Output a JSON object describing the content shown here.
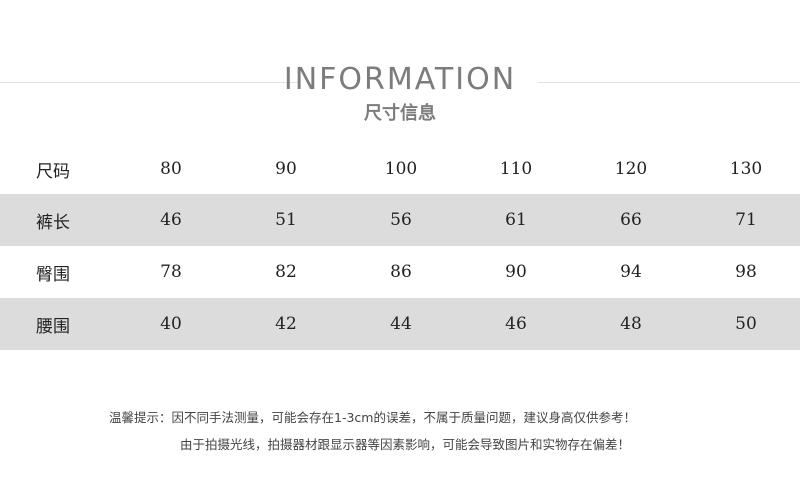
{
  "header": {
    "title": "INFORMATION",
    "subtitle": "尺寸信息"
  },
  "table": {
    "rows": [
      {
        "label": "尺码",
        "values": [
          "80",
          "90",
          "100",
          "110",
          "120",
          "130"
        ]
      },
      {
        "label": "裤长",
        "values": [
          "46",
          "51",
          "56",
          "61",
          "66",
          "71"
        ]
      },
      {
        "label": "臀围",
        "values": [
          "78",
          "82",
          "86",
          "90",
          "94",
          "98"
        ]
      },
      {
        "label": "腰围",
        "values": [
          "40",
          "42",
          "44",
          "46",
          "48",
          "50"
        ]
      }
    ]
  },
  "notes": [
    "温馨提示：因不同手法测量，可能会存在1-3cm的误差，不属于质量问题，建议身高仅供参考！",
    "由于拍摄光线，拍摄器材跟显示器等因素影响，可能会导致图片和实物存在偏差！"
  ]
}
